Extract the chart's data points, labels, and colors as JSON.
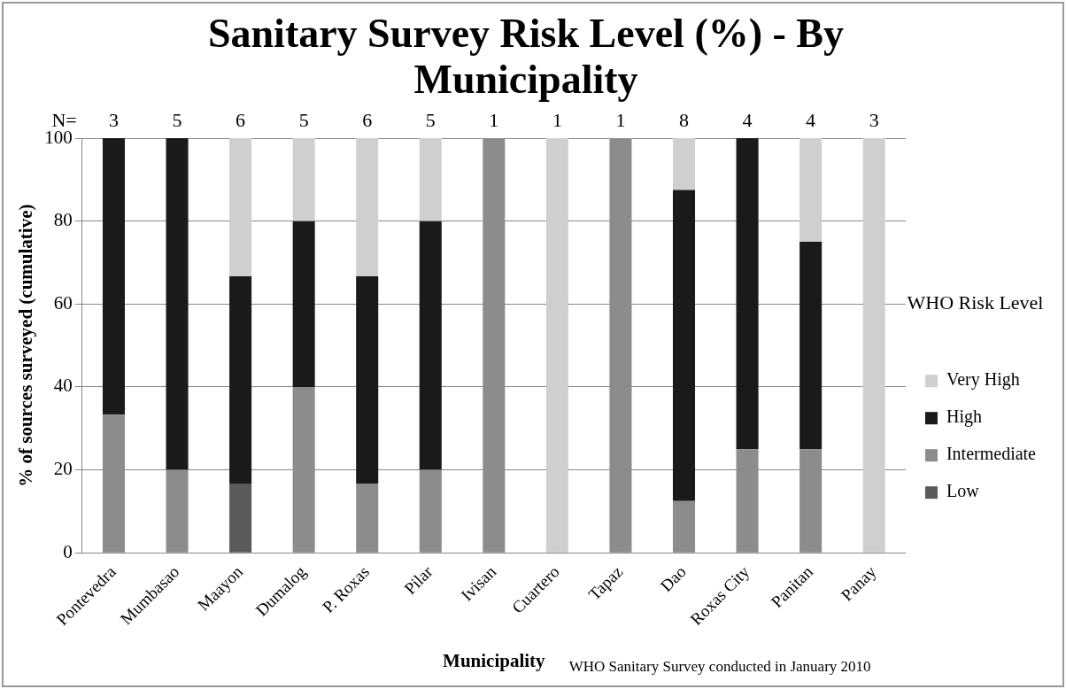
{
  "chart_data": {
    "type": "bar",
    "title": "Sanitary Survey Risk Level (%) - By Municipality",
    "xlabel": "Municipality",
    "ylabel": "% of sources surveyed (cumulative)",
    "legend_title": "WHO Risk Level",
    "categories": [
      "Pontevedra",
      "Mumbasao",
      "Maayon",
      "Dumalog",
      "P. Roxas",
      "Pilar",
      "Ivisan",
      "Cuartero",
      "Tapaz",
      "Dao",
      "Roxas City",
      "Panitan",
      "Panay"
    ],
    "stacked": true,
    "series": [
      {
        "name": "Low",
        "color": "#5a5a5a",
        "values": [
          0,
          0,
          16.7,
          0,
          0,
          0,
          0,
          0,
          0,
          0,
          0,
          0,
          0
        ]
      },
      {
        "name": "Intermediate",
        "color": "#8c8c8c",
        "values": [
          33.3,
          20,
          0,
          40,
          16.7,
          20,
          100,
          0,
          100,
          12.5,
          25,
          25,
          0
        ]
      },
      {
        "name": "High",
        "color": "#1a1a1a",
        "values": [
          66.7,
          80,
          50,
          40,
          50,
          60,
          0,
          0,
          0,
          75,
          75,
          50,
          0
        ]
      },
      {
        "name": "Very High",
        "color": "#cfcfcf",
        "values": [
          0,
          0,
          33.3,
          20,
          33.3,
          20,
          0,
          100,
          0,
          12.5,
          0,
          25,
          100
        ]
      }
    ],
    "ylim": [
      0,
      100
    ],
    "yticks": [
      0,
      20,
      40,
      60,
      80,
      100
    ],
    "grid": "y",
    "legend": "right",
    "annotations": [
      "N=",
      "3",
      "5",
      "6",
      "5",
      "6",
      "5",
      "1",
      "1",
      "1",
      "8",
      "4",
      "4",
      "3",
      "WHO Sanitary Survey conducted in January 2010"
    ]
  }
}
